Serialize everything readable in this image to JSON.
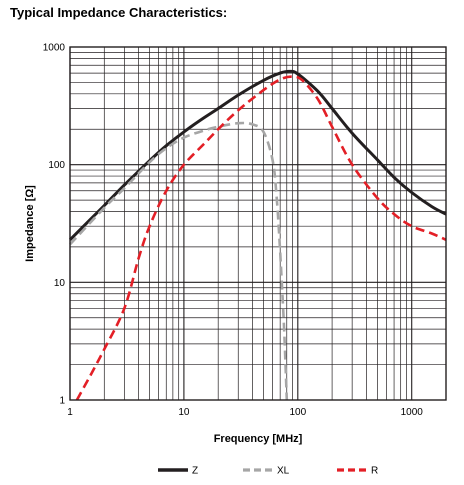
{
  "title": "Typical Impedance Characteristics:",
  "chart_data": {
    "type": "line",
    "title": "Typical Impedance Characteristics:",
    "xlabel": "Frequency [MHz]",
    "ylabel": "Impedance [Ω]",
    "x_scale": "log",
    "y_scale": "log",
    "xlim": [
      1,
      2000
    ],
    "ylim": [
      1,
      1000
    ],
    "x_ticks": [
      1,
      10,
      100,
      1000
    ],
    "x_tick_labels": [
      "1",
      "10",
      "100",
      "1000"
    ],
    "y_ticks": [
      1,
      10,
      100,
      1000
    ],
    "y_tick_labels": [
      "1",
      "10",
      "100",
      "1000"
    ],
    "grid": true,
    "legend_position": "bottom",
    "series": [
      {
        "name": "Z",
        "color": "#231f20",
        "style": "solid",
        "x": [
          1,
          2,
          3,
          5,
          7,
          10,
          15,
          20,
          30,
          50,
          70,
          85,
          100,
          150,
          200,
          300,
          500,
          700,
          1000,
          1500,
          2000
        ],
        "y": [
          23,
          45,
          67,
          108,
          145,
          190,
          250,
          300,
          390,
          520,
          600,
          620,
          590,
          420,
          300,
          185,
          110,
          78,
          58,
          44,
          38
        ]
      },
      {
        "name": "XL",
        "color": "#a6a6a6",
        "style": "dashed",
        "x": [
          1,
          2,
          3,
          5,
          7,
          10,
          15,
          20,
          30,
          40,
          50,
          60,
          65,
          70,
          75,
          78,
          80
        ],
        "y": [
          21,
          43,
          63,
          105,
          138,
          170,
          195,
          210,
          225,
          220,
          190,
          110,
          55,
          18,
          5,
          2,
          1
        ]
      },
      {
        "name": "R",
        "color": "#e31f26",
        "style": "dashed",
        "x": [
          1.15,
          1.5,
          2,
          3,
          4,
          5,
          7,
          10,
          15,
          20,
          30,
          50,
          70,
          90,
          110,
          150,
          200,
          300,
          500,
          700,
          1000,
          1500,
          2000
        ],
        "y": [
          1,
          1.6,
          2.7,
          6,
          16,
          30,
          60,
          100,
          150,
          200,
          290,
          430,
          530,
          560,
          520,
          360,
          210,
          100,
          52,
          38,
          30,
          26,
          23
        ]
      }
    ]
  }
}
